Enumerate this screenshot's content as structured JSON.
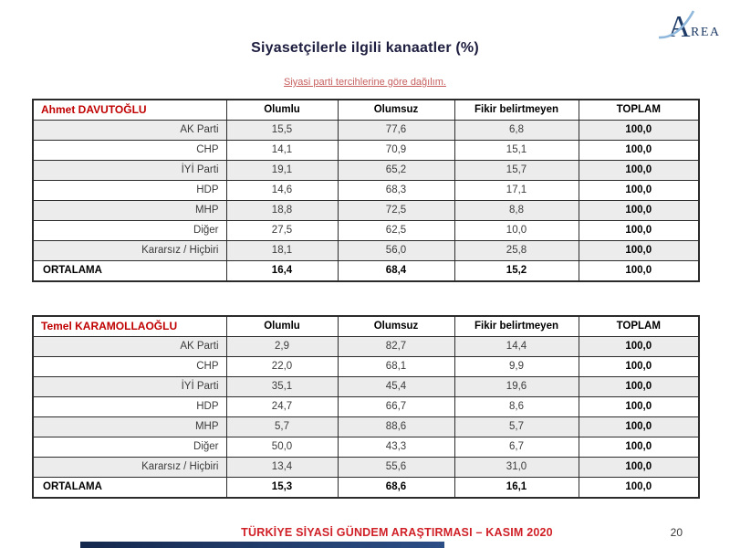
{
  "logo": {
    "initial": "A",
    "rest": "REA"
  },
  "header": {
    "title": "Siyasetçilerle ilgili kanaatler (%)",
    "subtitle": "Siyasi parti tercihlerine göre dağılım."
  },
  "columns": [
    "Olumlu",
    "Olumsuz",
    "Fikir belirtmeyen",
    "TOPLAM"
  ],
  "tables": [
    {
      "politician": "Ahmet DAVUTOĞLU",
      "rows": [
        {
          "label": "AK Parti",
          "values": [
            "15,5",
            "77,6",
            "6,8",
            "100,0"
          ]
        },
        {
          "label": "CHP",
          "values": [
            "14,1",
            "70,9",
            "15,1",
            "100,0"
          ]
        },
        {
          "label": "İYİ Parti",
          "values": [
            "19,1",
            "65,2",
            "15,7",
            "100,0"
          ]
        },
        {
          "label": "HDP",
          "values": [
            "14,6",
            "68,3",
            "17,1",
            "100,0"
          ]
        },
        {
          "label": "MHP",
          "values": [
            "18,8",
            "72,5",
            "8,8",
            "100,0"
          ]
        },
        {
          "label": "Diğer",
          "values": [
            "27,5",
            "62,5",
            "10,0",
            "100,0"
          ]
        },
        {
          "label": "Kararsız / Hiçbiri",
          "values": [
            "18,1",
            "56,0",
            "25,8",
            "100,0"
          ]
        },
        {
          "label": "ORTALAMA",
          "values": [
            "16,4",
            "68,4",
            "15,2",
            "100,0"
          ]
        }
      ]
    },
    {
      "politician": "Temel KARAMOLLAOĞLU",
      "rows": [
        {
          "label": "AK Parti",
          "values": [
            "2,9",
            "82,7",
            "14,4",
            "100,0"
          ]
        },
        {
          "label": "CHP",
          "values": [
            "22,0",
            "68,1",
            "9,9",
            "100,0"
          ]
        },
        {
          "label": "İYİ Parti",
          "values": [
            "35,1",
            "45,4",
            "19,6",
            "100,0"
          ]
        },
        {
          "label": "HDP",
          "values": [
            "24,7",
            "66,7",
            "8,6",
            "100,0"
          ]
        },
        {
          "label": "MHP",
          "values": [
            "5,7",
            "88,6",
            "5,7",
            "100,0"
          ]
        },
        {
          "label": "Diğer",
          "values": [
            "50,0",
            "43,3",
            "6,7",
            "100,0"
          ]
        },
        {
          "label": "Kararsız / Hiçbiri",
          "values": [
            "13,4",
            "55,6",
            "31,0",
            "100,0"
          ]
        },
        {
          "label": "ORTALAMA",
          "values": [
            "15,3",
            "68,6",
            "16,1",
            "100,0"
          ]
        }
      ]
    }
  ],
  "footer": {
    "report_title": "TÜRKİYE SİYASİ GÜNDEM ARAŞTIRMASI – KASIM 2020",
    "page_number": "20"
  },
  "colors": {
    "politician_red": "#c00000",
    "footer_red": "#d02027",
    "subtitle_red": "#c75f5f",
    "title_navy": "#1d1d3f",
    "logo_navy": "#1e3a66",
    "logo_swoosh_blue": "#8fb8dc",
    "shaded_row": "#ececec",
    "accent_bar_navy": "#16294e"
  }
}
